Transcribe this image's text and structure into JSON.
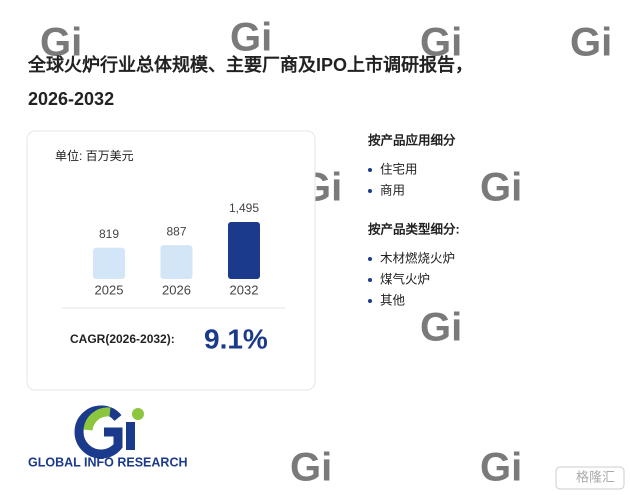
{
  "chart_data": {
    "type": "bar",
    "title": "全球火炉行业总体规模、主要厂商及IPO上市调研报告，",
    "subtitle": "2026-2032",
    "unit": "单位: 百万美元",
    "categories": [
      "2025",
      "2026",
      "2032"
    ],
    "values": [
      819,
      887,
      1495
    ],
    "value_labels": [
      "819",
      "887",
      "1,495"
    ],
    "colors": [
      "#d3e6f8",
      "#d3e6f8",
      "#1b3a8c"
    ],
    "cagr_label": "CAGR(2026-2032):",
    "cagr_value": "9.1%"
  },
  "segments": [
    {
      "title": "按产品应用细分",
      "items": [
        "住宅用",
        "商用"
      ]
    },
    {
      "title": "按产品类型细分:",
      "items": [
        "木材燃烧火炉",
        "煤气火炉",
        "其他"
      ]
    }
  ],
  "logo": "GLOBAL INFO RESEARCH",
  "watermark": "格隆汇"
}
